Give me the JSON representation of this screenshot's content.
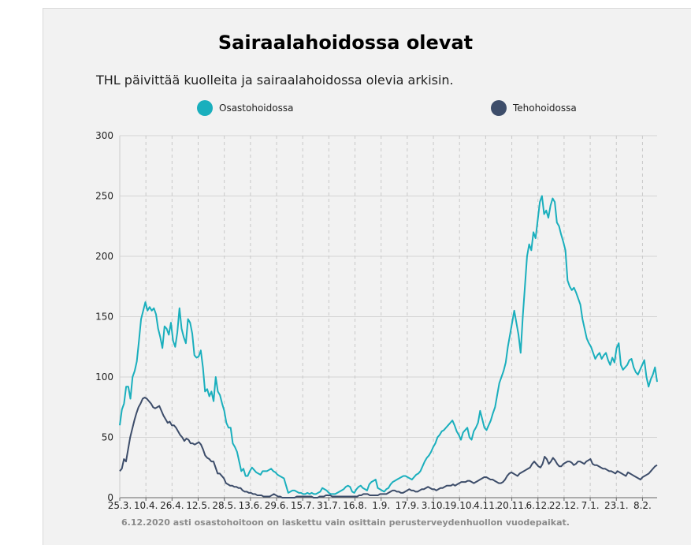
{
  "chart_data": {
    "type": "line",
    "title": "Sairaalahoidossa olevat",
    "subtitle": "THL päivittää kuolleita ja sairaalahoidossa olevia arkisin.",
    "footnote": "6.12.2020 asti osastohoitoon on laskettu vain osittain perusterveydenhuollon vuodepaikat.",
    "ylim": [
      0,
      300
    ],
    "yticks": [
      0,
      50,
      100,
      150,
      200,
      250,
      300
    ],
    "xticks": [
      "25.3.",
      "10.4.",
      "26.4.",
      "12.5.",
      "28.5.",
      "13.6.",
      "29.6.",
      "15.7.",
      "31.7.",
      "16.8.",
      "1.9.",
      "17.9.",
      "3.10.",
      "19.10.",
      "4.11.",
      "20.11.",
      "6.12.",
      "22.12.",
      "7.1.",
      "23.1.",
      "8.2."
    ],
    "grid": true,
    "legend_position": "top",
    "series": [
      {
        "name": "Osastohoidossa",
        "color": "#1aafbd",
        "values": [
          60,
          73,
          78,
          92,
          92,
          82,
          100,
          105,
          113,
          130,
          148,
          155,
          162,
          155,
          158,
          155,
          157,
          152,
          140,
          133,
          124,
          142,
          140,
          135,
          145,
          130,
          125,
          137,
          157,
          140,
          133,
          128,
          148,
          145,
          136,
          118,
          116,
          117,
          122,
          108,
          88,
          90,
          84,
          88,
          80,
          100,
          88,
          85,
          78,
          72,
          62,
          58,
          58,
          45,
          42,
          38,
          30,
          22,
          24,
          18,
          18,
          22,
          25,
          23,
          21,
          20,
          19,
          22,
          22,
          22,
          23,
          24,
          22,
          21,
          19,
          18,
          17,
          16,
          10,
          4,
          5,
          6,
          6,
          5,
          4,
          4,
          3,
          3,
          4,
          3,
          4,
          3,
          3,
          4,
          5,
          8,
          7,
          6,
          4,
          3,
          3,
          3,
          4,
          5,
          6,
          7,
          9,
          10,
          9,
          5,
          4,
          7,
          9,
          10,
          8,
          7,
          6,
          11,
          13,
          14,
          15,
          8,
          7,
          6,
          5,
          7,
          8,
          11,
          13,
          14,
          15,
          16,
          17,
          18,
          18,
          17,
          16,
          15,
          17,
          19,
          20,
          22,
          26,
          30,
          33,
          35,
          38,
          42,
          45,
          50,
          52,
          55,
          56,
          58,
          60,
          62,
          64,
          60,
          55,
          52,
          48,
          54,
          56,
          58,
          50,
          48,
          55,
          58,
          62,
          72,
          65,
          58,
          56,
          60,
          64,
          70,
          75,
          85,
          95,
          100,
          105,
          112,
          125,
          135,
          145,
          155,
          145,
          135,
          120,
          150,
          175,
          200,
          210,
          205,
          220,
          215,
          230,
          245,
          250,
          235,
          238,
          232,
          242,
          248,
          245,
          228,
          225,
          218,
          212,
          205,
          180,
          175,
          172,
          174,
          170,
          165,
          160,
          148,
          140,
          132,
          128,
          125,
          120,
          115,
          118,
          120,
          115,
          118,
          120,
          114,
          110,
          116,
          112,
          124,
          128,
          110,
          106,
          108,
          110,
          114,
          115,
          108,
          104,
          102,
          106,
          110,
          114,
          100,
          92,
          98,
          102,
          108,
          96
        ]
      },
      {
        "name": "Tehohoidossa",
        "color": "#3d4d6a",
        "values": [
          22,
          24,
          32,
          30,
          40,
          50,
          57,
          64,
          70,
          75,
          78,
          82,
          83,
          82,
          80,
          78,
          75,
          74,
          75,
          76,
          72,
          68,
          65,
          62,
          63,
          60,
          60,
          58,
          55,
          52,
          50,
          47,
          49,
          48,
          45,
          45,
          44,
          45,
          46,
          44,
          40,
          35,
          33,
          32,
          30,
          30,
          25,
          20,
          20,
          18,
          16,
          12,
          11,
          10,
          10,
          9,
          9,
          8,
          8,
          6,
          5,
          5,
          4,
          4,
          3,
          3,
          2,
          2,
          2,
          1,
          1,
          1,
          1,
          2,
          3,
          2,
          1,
          1,
          0,
          0,
          0,
          0,
          0,
          0,
          0,
          1,
          1,
          1,
          1,
          1,
          1,
          1,
          1,
          0,
          0,
          0,
          1,
          1,
          1,
          2,
          2,
          2,
          1,
          1,
          1,
          1,
          1,
          1,
          1,
          1,
          1,
          1,
          1,
          1,
          1,
          2,
          2,
          3,
          3,
          3,
          2,
          2,
          2,
          2,
          2,
          3,
          3,
          3,
          3,
          4,
          5,
          6,
          6,
          5,
          5,
          4,
          4,
          5,
          6,
          7,
          6,
          6,
          5,
          5,
          6,
          7,
          7,
          8,
          9,
          8,
          7,
          7,
          6,
          7,
          8,
          8,
          9,
          10,
          10,
          10,
          11,
          10,
          11,
          12,
          13,
          13,
          13,
          14,
          14,
          13,
          12,
          13,
          14,
          15,
          16,
          17,
          17,
          16,
          15,
          15,
          14,
          13,
          12,
          12,
          13,
          15,
          18,
          20,
          21,
          20,
          19,
          18,
          20,
          21,
          22,
          23,
          24,
          25,
          28,
          30,
          28,
          26,
          25,
          28,
          34,
          32,
          28,
          30,
          33,
          31,
          28,
          26,
          26,
          28,
          29,
          30,
          30,
          29,
          27,
          28,
          30,
          30,
          29,
          28,
          30,
          31,
          32,
          28,
          27,
          27,
          26,
          25,
          24,
          24,
          23,
          22,
          22,
          21,
          20,
          22,
          21,
          20,
          19,
          18,
          21,
          20,
          19,
          18,
          17,
          16,
          15,
          17,
          18,
          19,
          20,
          22,
          24,
          26,
          27
        ]
      }
    ]
  }
}
